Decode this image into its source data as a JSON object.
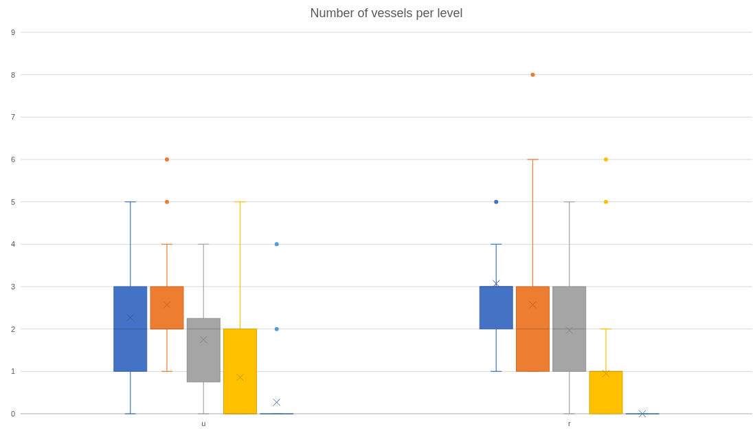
{
  "chart_data": {
    "type": "box",
    "title": "Number of vessels per level",
    "categories": [
      "u",
      "r"
    ],
    "ylim": [
      0,
      9
    ],
    "yticks": [
      0,
      1,
      2,
      3,
      4,
      5,
      6,
      7,
      8,
      9
    ],
    "grid": "y",
    "marker": "cross",
    "series": [
      {
        "color": "#4472c4",
        "boxes": [
          {
            "low": 0,
            "q1": 1,
            "median": 2,
            "q3": 3,
            "high": 5,
            "mean": 2.27
          },
          {
            "low": 1,
            "q1": 2,
            "median": 3,
            "q3": 3,
            "high": 4,
            "mean": 3.07,
            "outliers": [
              5
            ]
          }
        ]
      },
      {
        "color": "#ed7d31",
        "boxes": [
          {
            "low": 1,
            "q1": 2,
            "median": 2,
            "q3": 3,
            "high": 4,
            "mean": 2.57,
            "outliers": [
              5,
              6
            ]
          },
          {
            "low": 1,
            "q1": 1,
            "median": 2,
            "q3": 3,
            "high": 6,
            "mean": 2.57,
            "outliers": [
              8
            ]
          }
        ]
      },
      {
        "color": "#a5a5a5",
        "boxes": [
          {
            "low": 0,
            "q1": 0.75,
            "median": 2,
            "q3": 2.25,
            "high": 4,
            "mean": 1.75
          },
          {
            "low": 0,
            "q1": 1,
            "median": 2,
            "q3": 3,
            "high": 5,
            "mean": 1.97
          }
        ]
      },
      {
        "color": "#ffc000",
        "boxes": [
          {
            "low": 0,
            "q1": 0,
            "median": 0,
            "q3": 2,
            "high": 5,
            "mean": 0.86
          },
          {
            "low": 0,
            "q1": 0,
            "median": 1,
            "q3": 1,
            "high": 2,
            "mean": 0.95,
            "outliers": [
              5,
              6
            ]
          }
        ]
      },
      {
        "color": "#5b9bd5",
        "boxes": [
          {
            "low": 0,
            "q1": 0,
            "median": 0,
            "q3": 0,
            "high": 0,
            "mean": 0.27,
            "outliers": [
              2,
              4
            ]
          },
          {
            "low": 0,
            "q1": 0,
            "median": 0,
            "q3": 0,
            "high": 0,
            "mean": 0
          }
        ]
      }
    ]
  }
}
